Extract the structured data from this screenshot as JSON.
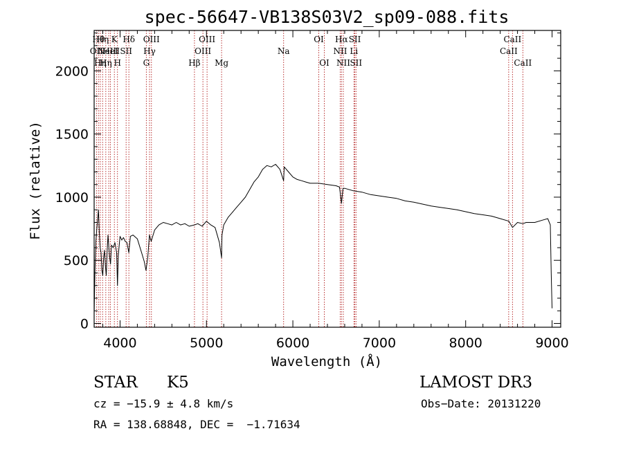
{
  "chart_data": {
    "type": "line",
    "title": "spec-56647-VB138S03V2_sp09-088.fits",
    "xlabel": "Wavelength (Å)",
    "ylabel": "Flux (relative)",
    "xlim": [
      3700,
      9100
    ],
    "ylim": [
      -30,
      2320
    ],
    "xticks": [
      4000,
      5000,
      6000,
      7000,
      8000,
      9000
    ],
    "yticks": [
      0,
      500,
      1000,
      1500,
      2000
    ],
    "xtick_labels": [
      "4000",
      "5000",
      "6000",
      "7000",
      "8000",
      "9000"
    ],
    "ytick_labels": [
      "0",
      "500",
      "1000",
      "1500",
      "2000"
    ],
    "grid": false,
    "series": [
      {
        "x": [
          3700,
          3710,
          3720,
          3730,
          3740,
          3750,
          3760,
          3770,
          3780,
          3790,
          3800,
          3810,
          3820,
          3830,
          3840,
          3850,
          3860,
          3870,
          3880,
          3890,
          3900,
          3920,
          3940,
          3960,
          3970,
          3980,
          4000,
          4020,
          4040,
          4060,
          4080,
          4101,
          4120,
          4150,
          4200,
          4250,
          4280,
          4300,
          4320,
          4340,
          4360,
          4400,
          4450,
          4500,
          4550,
          4600,
          4650,
          4700,
          4750,
          4800,
          4861,
          4900,
          4950,
          5000,
          5050,
          5100,
          5150,
          5175,
          5180,
          5200,
          5250,
          5300,
          5350,
          5400,
          5450,
          5500,
          5550,
          5600,
          5650,
          5700,
          5750,
          5800,
          5850,
          5893,
          5900,
          5950,
          6000,
          6050,
          6100,
          6150,
          6200,
          6300,
          6400,
          6500,
          6540,
          6563,
          6580,
          6600,
          6700,
          6800,
          6900,
          7000,
          7100,
          7200,
          7300,
          7400,
          7500,
          7600,
          7700,
          7800,
          7900,
          8000,
          8100,
          8200,
          8300,
          8400,
          8500,
          8542,
          8600,
          8662,
          8700,
          8800,
          8900,
          8950,
          8980,
          8990,
          9000
        ],
        "y": [
          80,
          420,
          650,
          740,
          820,
          900,
          720,
          600,
          560,
          420,
          380,
          520,
          580,
          460,
          380,
          560,
          700,
          610,
          520,
          470,
          620,
          600,
          640,
          560,
          300,
          540,
          690,
          660,
          680,
          650,
          640,
          560,
          690,
          700,
          670,
          560,
          490,
          420,
          520,
          700,
          650,
          740,
          780,
          800,
          790,
          780,
          800,
          780,
          790,
          770,
          780,
          790,
          770,
          810,
          780,
          760,
          640,
          520,
          700,
          780,
          840,
          880,
          920,
          960,
          1000,
          1060,
          1120,
          1160,
          1220,
          1250,
          1240,
          1260,
          1220,
          1130,
          1240,
          1200,
          1160,
          1140,
          1130,
          1120,
          1110,
          1110,
          1100,
          1090,
          1080,
          950,
          1070,
          1070,
          1050,
          1040,
          1020,
          1010,
          1000,
          990,
          970,
          960,
          945,
          930,
          920,
          910,
          900,
          885,
          870,
          860,
          850,
          830,
          810,
          760,
          800,
          790,
          800,
          800,
          820,
          830,
          780,
          400,
          120
        ]
      }
    ],
    "lines": [
      {
        "x": 3727,
        "label": "OII",
        "row": 1
      },
      {
        "x": 3750,
        "label": "Hθ",
        "row": 0
      },
      {
        "x": 3771,
        "label": "Hη",
        "row": 2
      },
      {
        "x": 3798,
        "label": "Hη",
        "row": 0
      },
      {
        "x": 3835,
        "label": "Hη",
        "row": 2
      },
      {
        "x": 3869,
        "label": "NeIII",
        "row": 1
      },
      {
        "x": 3889,
        "label": "HeI",
        "row": 1
      },
      {
        "x": 3934,
        "label": "K",
        "row": 0
      },
      {
        "x": 3970,
        "label": "H",
        "row": 2
      },
      {
        "x": 4070,
        "label": "SII",
        "row": 1
      },
      {
        "x": 4102,
        "label": "Hδ",
        "row": 0
      },
      {
        "x": 4304,
        "label": "G",
        "row": 2
      },
      {
        "x": 4341,
        "label": "Hγ",
        "row": 1
      },
      {
        "x": 4363,
        "label": "OIII",
        "row": 0
      },
      {
        "x": 4861,
        "label": "Hβ",
        "row": 2
      },
      {
        "x": 4959,
        "label": "OIII",
        "row": 1
      },
      {
        "x": 5007,
        "label": "OIII",
        "row": 0
      },
      {
        "x": 5175,
        "label": "Mg",
        "row": 2
      },
      {
        "x": 5893,
        "label": "Na",
        "row": 1
      },
      {
        "x": 6300,
        "label": "OI",
        "row": 0
      },
      {
        "x": 6364,
        "label": "OI",
        "row": 2
      },
      {
        "x": 6548,
        "label": "NII",
        "row": 1
      },
      {
        "x": 6563,
        "label": "Hα",
        "row": 0
      },
      {
        "x": 6584,
        "label": "NII",
        "row": 2
      },
      {
        "x": 6707,
        "label": "Li",
        "row": 1
      },
      {
        "x": 6717,
        "label": "SII",
        "row": 0
      },
      {
        "x": 6731,
        "label": "SII",
        "row": 2
      },
      {
        "x": 8498,
        "label": "CaII",
        "row": 1
      },
      {
        "x": 8542,
        "label": "CaII",
        "row": 0
      },
      {
        "x": 8662,
        "label": "CaII",
        "row": 2
      }
    ],
    "line_color": "#b01818"
  },
  "info": {
    "object_class": "STAR",
    "subclass": "K5",
    "survey": "LAMOST DR3",
    "cz": "cz = −15.9 ± 4.8 km/s",
    "obs_date": "Obs−Date: 20131220",
    "coords": "RA = 138.68848, DEC =  −1.71634"
  }
}
